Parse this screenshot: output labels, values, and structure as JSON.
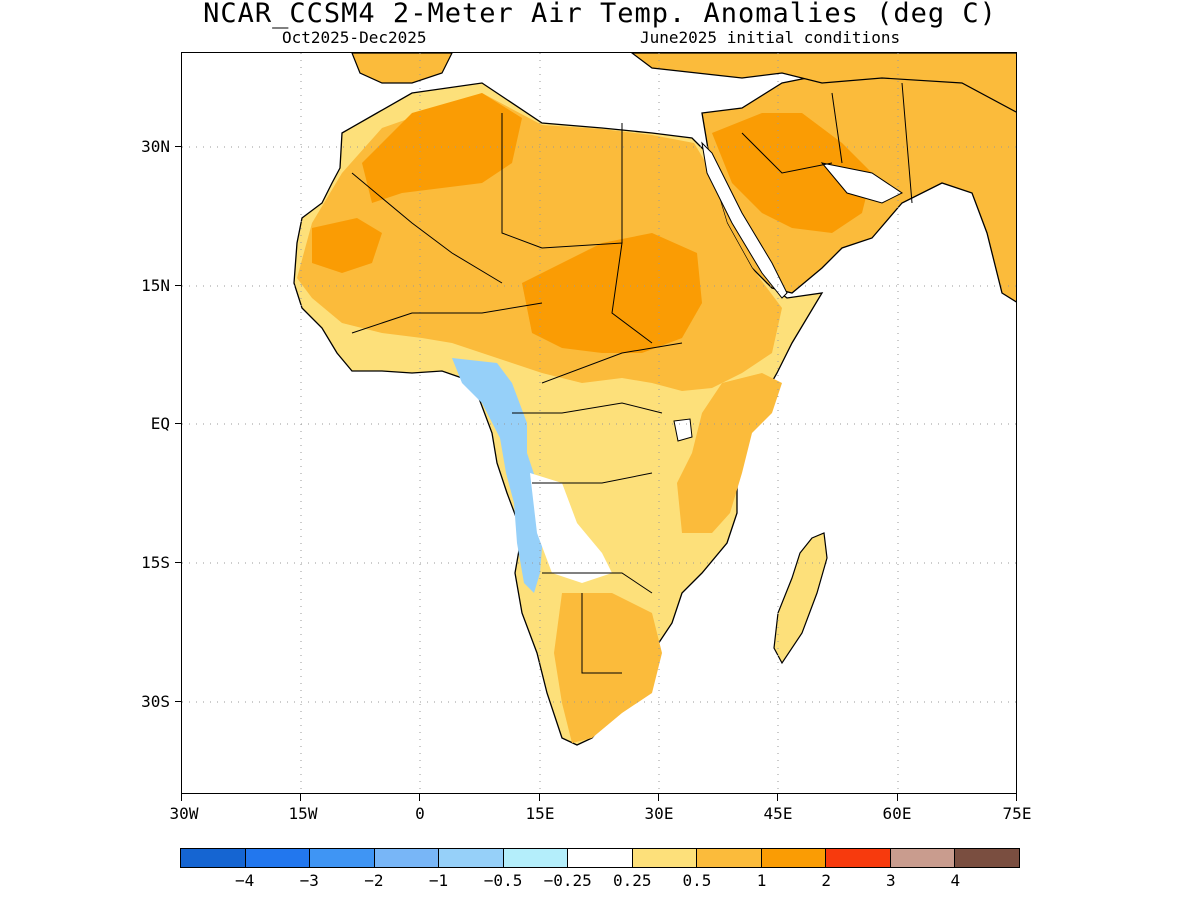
{
  "title": "NCAR_CCSM4 2-Meter Air Temp. Anomalies (deg C)",
  "subtitle_left": "Oct2025-Dec2025",
  "subtitle_right": "June2025 initial conditions",
  "lat_labels": [
    "30N",
    "15N",
    "EQ",
    "15S",
    "30S"
  ],
  "lon_labels": [
    "30W",
    "15W",
    "0",
    "15E",
    "30E",
    "45E",
    "60E",
    "75E"
  ],
  "colorbar": {
    "colors": [
      "#1565d2",
      "#2277ee",
      "#3f95f4",
      "#78b6f7",
      "#96d0f9",
      "#b4eefb",
      "#ffffff",
      "#fde07a",
      "#fbbb3b",
      "#fa9c04",
      "#f73a0d",
      "#c99c8e",
      "#7a4e40"
    ],
    "labels": [
      "-4",
      "-3",
      "-2",
      "-1",
      "-0.5",
      "-0.25",
      "0.25",
      "0.5",
      "1",
      "2",
      "3",
      "4"
    ]
  },
  "map": {
    "extent": "30W-75E, 40S-39N",
    "grid": "dotted",
    "category_colors": {
      "ocean": "#ffffff",
      "slight_warm": "#fde07a",
      "warm": "#fbbb3b",
      "very_warm": "#fa9c04",
      "cool": "#96d0f9",
      "very_cool": "#78b6f7",
      "near_normal": "#ffffff"
    }
  }
}
